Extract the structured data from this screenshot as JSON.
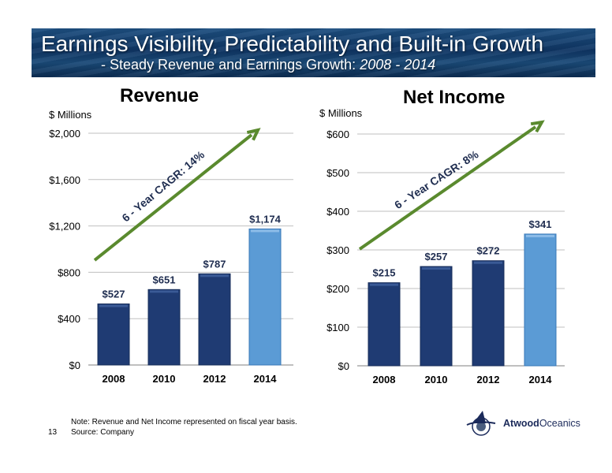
{
  "header": {
    "title": "Earnings Visibility, Predictability and Built-in Growth",
    "subtitle_prefix": "- Steady Revenue and Earnings Growth: ",
    "subtitle_years": "2008 - 2014"
  },
  "footer": {
    "note": "Note: Revenue and Net Income represented on fiscal year basis.",
    "source": "Source: Company",
    "page_number": "13"
  },
  "logo": {
    "name_bold": "Atwood",
    "name_light": "Oceanics"
  },
  "colors": {
    "bar_dark": "#1f3b73",
    "bar_highlight": "#5b9bd5",
    "arrow": "#5a8a2e",
    "grid": "#bfbfbf"
  },
  "chart_data": [
    {
      "type": "bar",
      "title": "Revenue",
      "unit_label": "$ Millions",
      "categories": [
        "2008",
        "2010",
        "2012",
        "2014"
      ],
      "values": [
        527,
        651,
        787,
        1174
      ],
      "data_labels": [
        "$527",
        "$651",
        "$787",
        "$1,174"
      ],
      "highlight_index": 3,
      "ylim": [
        0,
        2000
      ],
      "yticks": [
        0,
        400,
        800,
        1200,
        1600,
        2000
      ],
      "ytick_labels": [
        "$0",
        "$400",
        "$800",
        "$1,200",
        "$1,600",
        "$2,000"
      ],
      "grid": true,
      "annotation": "6 - Year CAGR: 14%"
    },
    {
      "type": "bar",
      "title": "Net Income",
      "unit_label": "$ Millions",
      "categories": [
        "2008",
        "2010",
        "2012",
        "2014"
      ],
      "values": [
        215,
        257,
        272,
        341
      ],
      "data_labels": [
        "$215",
        "$257",
        "$272",
        "$341"
      ],
      "highlight_index": 3,
      "ylim": [
        0,
        600
      ],
      "yticks": [
        0,
        100,
        200,
        300,
        400,
        500,
        600
      ],
      "ytick_labels": [
        "$0",
        "$100",
        "$200",
        "$300",
        "$400",
        "$500",
        "$600"
      ],
      "grid": true,
      "annotation": "6 - Year CAGR: 8%"
    }
  ]
}
